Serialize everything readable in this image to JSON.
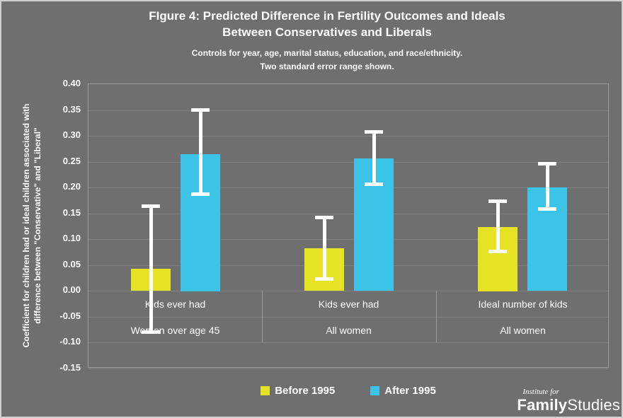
{
  "title": {
    "line1": "FIgure 4: Predicted Difference in Fertility Outcomes and Ideals",
    "line2": "Between Conservatives and Liberals"
  },
  "subtitle": {
    "line1": "Controls for year, age, marital status, education, and race/ethnicity.",
    "line2": "Two standard error range shown."
  },
  "y_axis": {
    "label_line1": "Coefficient for children had or ideal children associated with",
    "label_line2": "difference between \"Conservative\" and \"Liberal\"",
    "ticks": [
      "0.40",
      "0.35",
      "0.30",
      "0.25",
      "0.20",
      "0.15",
      "0.10",
      "0.05",
      "0.00",
      "-0.05",
      "-0.10",
      "-0.15"
    ]
  },
  "legend": [
    {
      "label": "Before 1995",
      "color": "#e6e324"
    },
    {
      "label": "After 1995",
      "color": "#3cc4e8"
    }
  ],
  "logo": {
    "institute_for": "Institute for",
    "family": "Family",
    "studies": "Studies"
  },
  "colors": {
    "background": "#6f6f6f",
    "gridline": "#7f7f7f",
    "plot_border": "#9b9b9b",
    "text": "#ffffff",
    "before_1995": "#e6e324",
    "after_1995": "#3cc4e8",
    "error_bar": "#ffffff"
  },
  "chart_data": {
    "type": "bar",
    "title": "FIgure 4: Predicted Difference in Fertility Outcomes and Ideals Between Conservatives and Liberals",
    "subtitle": "Controls for year, age, marital status, education, and race/ethnicity. Two standard error range shown.",
    "ylabel": "Coefficient for children had or ideal children associated with difference between \"Conservative\" and \"Liberal\"",
    "ylim": [
      -0.15,
      0.4
    ],
    "ytick_step": 0.05,
    "grid": true,
    "legend_position": "bottom",
    "groups": [
      {
        "label_top": "Kids ever had",
        "label_bottom": "Women over age 45"
      },
      {
        "label_top": "Kids ever had",
        "label_bottom": "All women"
      },
      {
        "label_top": "Ideal number of kids",
        "label_bottom": "All women"
      }
    ],
    "series": [
      {
        "name": "Before 1995",
        "color": "#e6e324",
        "values": [
          0.043,
          0.082,
          0.124
        ],
        "err_low": [
          -0.083,
          0.019,
          0.073
        ],
        "err_high": [
          0.168,
          0.145,
          0.177
        ]
      },
      {
        "name": "After 1995",
        "color": "#3cc4e8",
        "values": [
          0.265,
          0.256,
          0.2
        ],
        "err_low": [
          0.183,
          0.203,
          0.154
        ],
        "err_high": [
          0.353,
          0.311,
          0.249
        ]
      }
    ]
  }
}
